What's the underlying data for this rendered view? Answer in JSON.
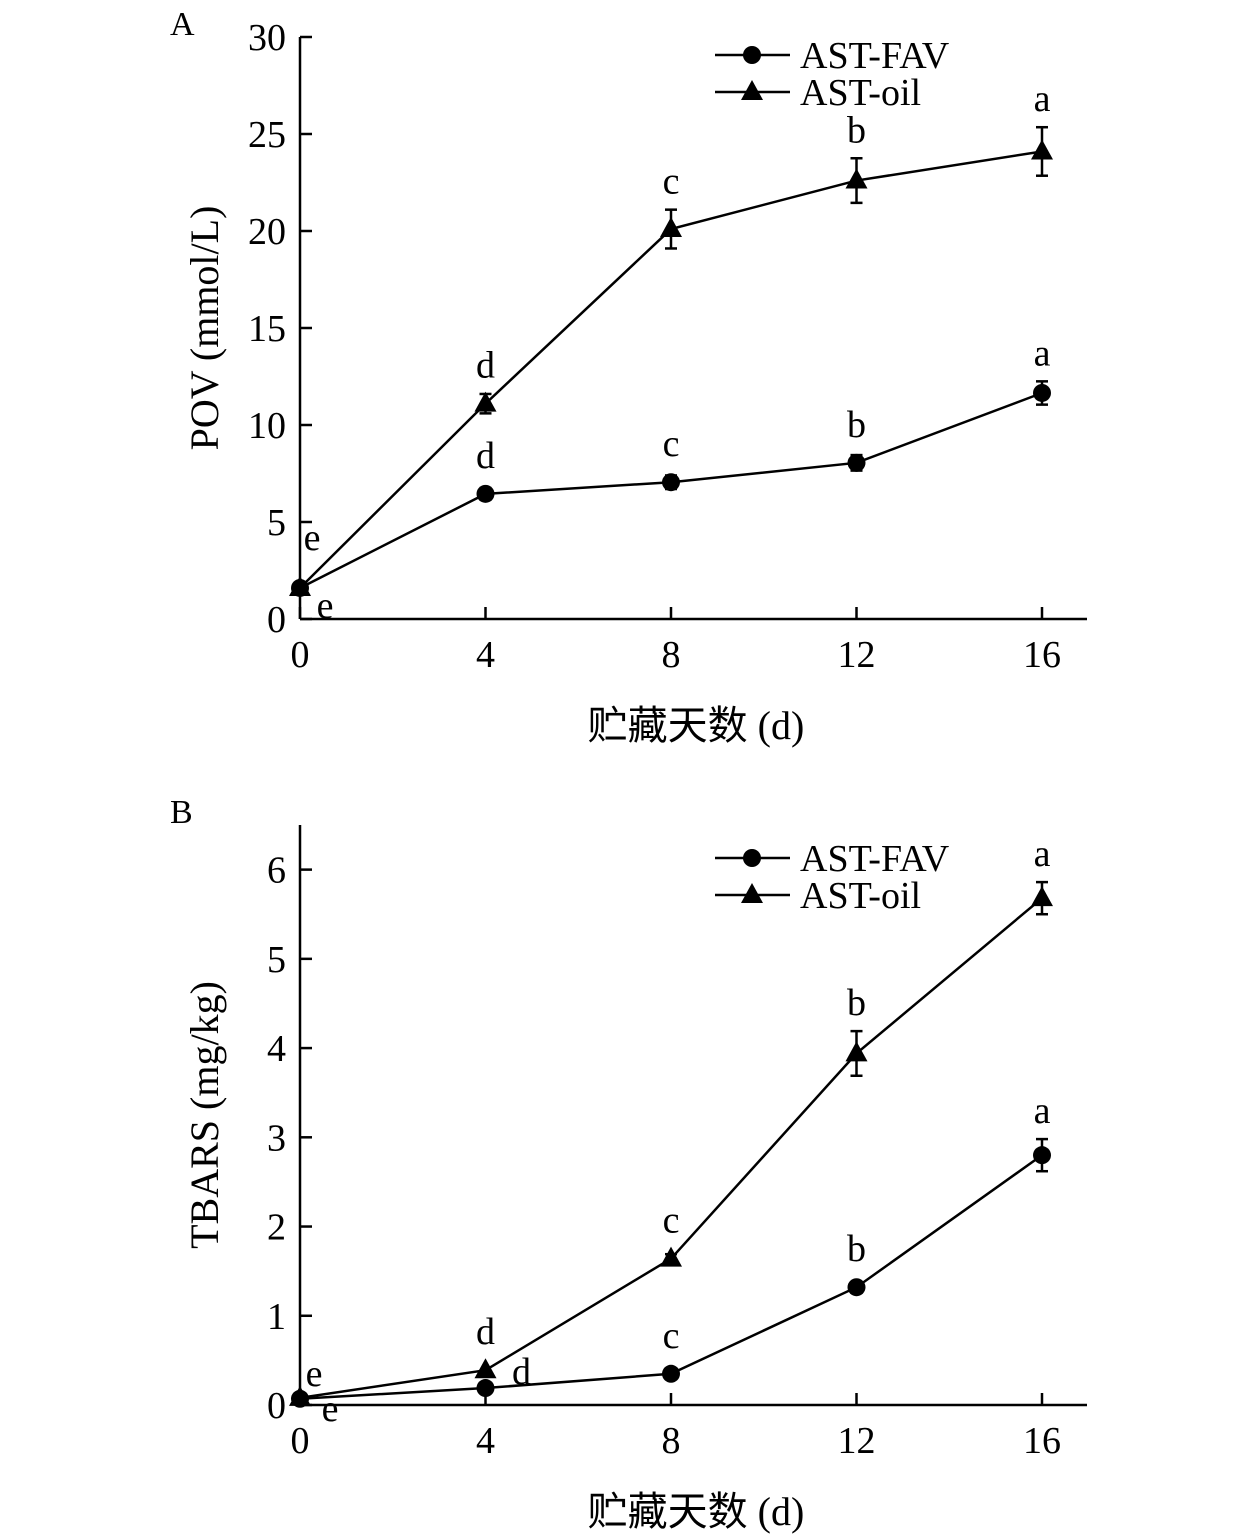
{
  "chart_data": [
    {
      "type": "line",
      "panel": "A",
      "title": "",
      "xlabel": "贮藏天数 (d)",
      "ylabel": "POV (mmol/L)",
      "x": [
        0,
        4,
        8,
        12,
        16
      ],
      "xticks": [
        "0",
        "4",
        "8",
        "12",
        "16"
      ],
      "yticks": [
        "0",
        "5",
        "10",
        "15",
        "20",
        "25",
        "30"
      ],
      "ytick_values": [
        0,
        5,
        10,
        15,
        20,
        25,
        30
      ],
      "xlim": [
        0,
        17
      ],
      "ylim": [
        0,
        30
      ],
      "grid": false,
      "legend_position": "top-right",
      "series": [
        {
          "name": "AST-FAV",
          "marker": "circle",
          "values": [
            1.6,
            6.45,
            7.05,
            8.05,
            11.65
          ],
          "errors": [
            0.2,
            0.3,
            0.35,
            0.4,
            0.6
          ],
          "labels": [
            "e",
            "d",
            "c",
            "b",
            "a"
          ]
        },
        {
          "name": "AST-oil",
          "marker": "triangle",
          "values": [
            1.6,
            11.1,
            20.1,
            22.6,
            24.1
          ],
          "errors": [
            0.2,
            0.5,
            1.0,
            1.15,
            1.25
          ],
          "labels": [
            "e",
            "d",
            "c",
            "b",
            "a"
          ]
        }
      ]
    },
    {
      "type": "line",
      "panel": "B",
      "title": "",
      "xlabel": "贮藏天数 (d)",
      "ylabel": "TBARS (mg/kg)",
      "x": [
        0,
        4,
        8,
        12,
        16
      ],
      "xticks": [
        "0",
        "4",
        "8",
        "12",
        "16"
      ],
      "yticks": [
        "0",
        "1",
        "2",
        "3",
        "4",
        "5",
        "6"
      ],
      "ytick_values": [
        0,
        1,
        2,
        3,
        4,
        5,
        6
      ],
      "xlim": [
        0,
        17
      ],
      "ylim": [
        0,
        6.5
      ],
      "grid": false,
      "legend_position": "top-right",
      "series": [
        {
          "name": "AST-FAV",
          "marker": "circle",
          "values": [
            0.07,
            0.19,
            0.35,
            1.32,
            2.8
          ],
          "errors": [
            0.02,
            0.03,
            0.04,
            0.05,
            0.18
          ],
          "labels": [
            "e",
            "d",
            "c",
            "b",
            "a"
          ]
        },
        {
          "name": "AST-oil",
          "marker": "triangle",
          "values": [
            0.08,
            0.39,
            1.64,
            3.94,
            5.68
          ],
          "errors": [
            0.02,
            0.04,
            0.05,
            0.25,
            0.18
          ],
          "labels": [
            "e",
            "d",
            "c",
            "b",
            "a"
          ]
        }
      ]
    }
  ]
}
